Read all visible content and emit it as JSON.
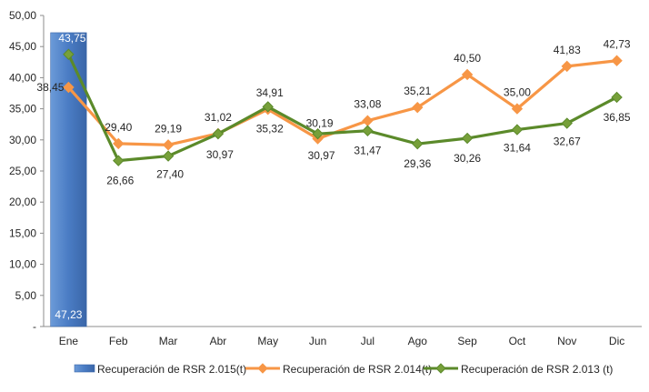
{
  "chart_data": {
    "type": "bar+line",
    "categories": [
      "Ene",
      "Feb",
      "Mar",
      "Abr",
      "May",
      "Jun",
      "Jul",
      "Ago",
      "Sep",
      "Oct",
      "Nov",
      "Dic"
    ],
    "ylim": [
      0,
      50
    ],
    "yticks": [
      0,
      5,
      10,
      15,
      20,
      25,
      30,
      35,
      40,
      45,
      50
    ],
    "ytick_labels": [
      "-",
      "5,00",
      "10,00",
      "15,00",
      "20,00",
      "25,00",
      "30,00",
      "35,00",
      "40,00",
      "45,00",
      "50,00"
    ],
    "grid": false,
    "legend_position": "bottom",
    "bar_series": {
      "name": "Recuperación de RSR 2.015(t)",
      "color": "#4a7cc4",
      "values": [
        47.23,
        null,
        null,
        null,
        null,
        null,
        null,
        null,
        null,
        null,
        null,
        null
      ],
      "labels": [
        "47,23",
        "",
        "",
        "",
        "",
        "",
        "",
        "",
        "",
        "",
        "",
        ""
      ]
    },
    "line_series": [
      {
        "name": "Recuperación de RSR 2.014(t)",
        "color": "#f79646",
        "marker_color": "#f79646",
        "values": [
          38.45,
          29.4,
          29.19,
          31.02,
          34.91,
          30.19,
          33.08,
          35.21,
          40.5,
          35.0,
          41.83,
          42.73
        ],
        "labels": [
          "38,45",
          "29,40",
          "29,19",
          "31,02",
          "34,91",
          "30,19",
          "33,08",
          "35,21",
          "40,50",
          "35,00",
          "41,83",
          "42,73"
        ]
      },
      {
        "name": "Recuperación de RSR 2.013 (t)",
        "color": "#5b8a2a",
        "marker_color": "#77a03a",
        "values": [
          43.75,
          26.66,
          27.4,
          30.97,
          35.32,
          30.97,
          31.47,
          29.36,
          30.26,
          31.64,
          32.67,
          36.85
        ],
        "labels": [
          "43,75",
          "26,66",
          "27,40",
          "30,97",
          "35,32",
          "30,97",
          "31,47",
          "29,36",
          "30,26",
          "31,64",
          "32,67",
          "36,85"
        ]
      }
    ]
  }
}
